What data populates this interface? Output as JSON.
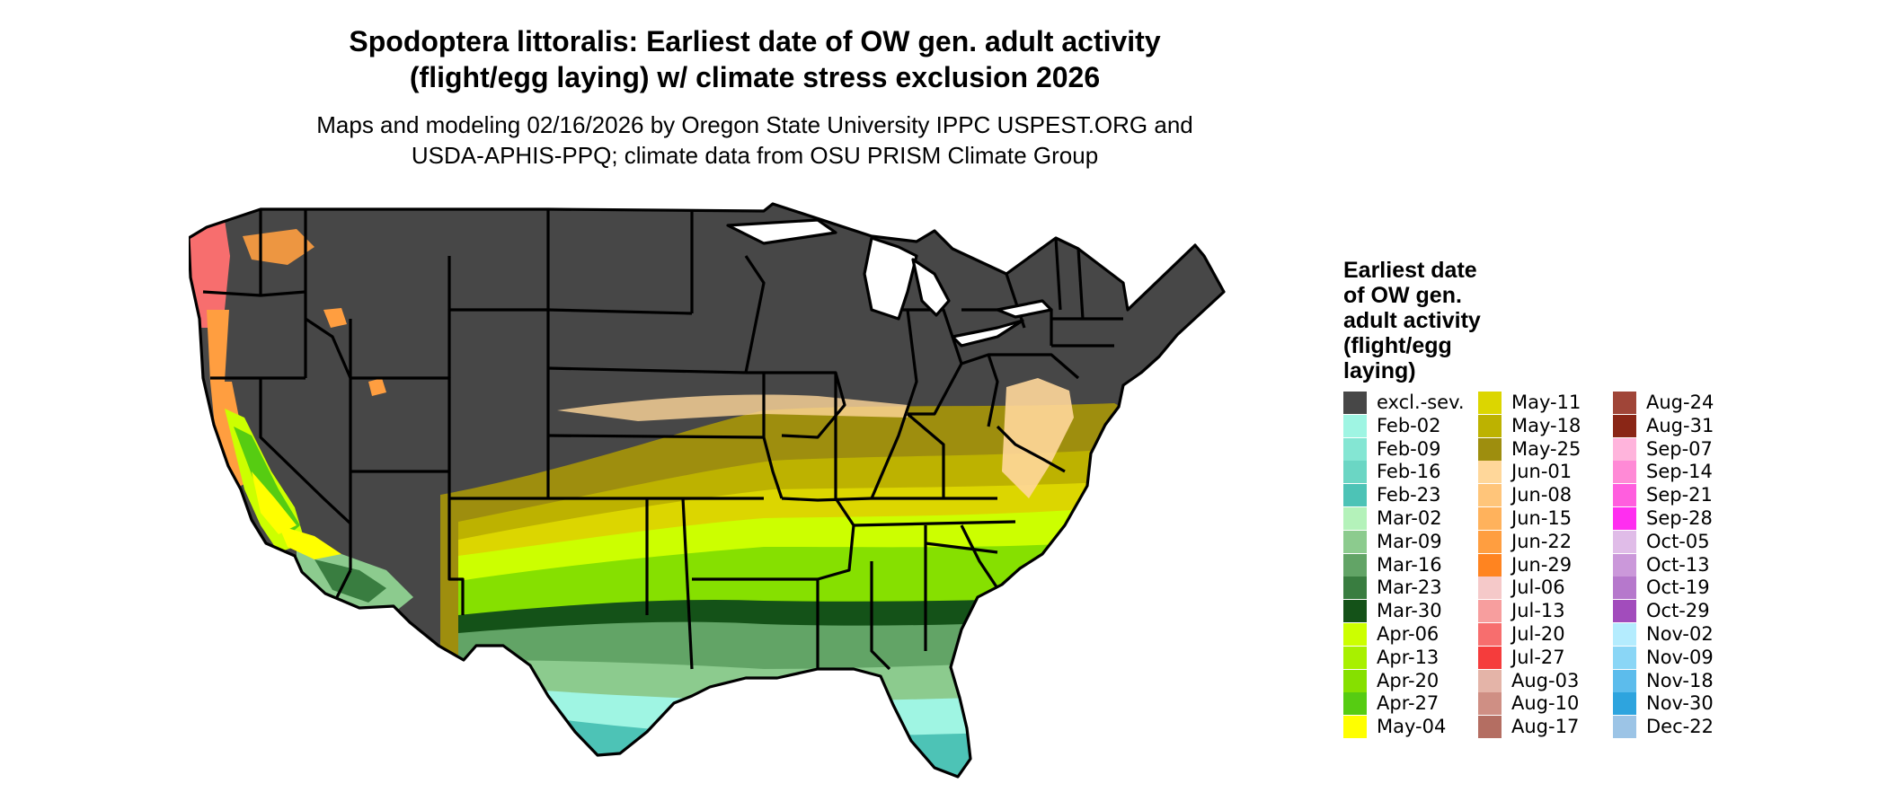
{
  "title": {
    "line1": "Spodoptera littoralis: Earliest date of OW gen. adult activity",
    "line2": "(flight/egg laying) w/ climate stress exclusion 2026"
  },
  "subtitle": {
    "line1": "Maps and modeling 02/16/2026 by Oregon State University IPPC USPEST.ORG and",
    "line2": "USDA-APHIS-PPQ; climate data from OSU PRISM Climate Group"
  },
  "legend": {
    "title_lines": [
      "Earliest date",
      "of OW gen.",
      "adult activity",
      "(flight/egg",
      "laying)"
    ],
    "columns": [
      [
        {
          "label": "excl.-sev.",
          "color": "#474747"
        },
        {
          "label": "Feb-02",
          "color": "#9ff5e3"
        },
        {
          "label": "Feb-09",
          "color": "#84e6d3"
        },
        {
          "label": "Feb-16",
          "color": "#6bd6c4"
        },
        {
          "label": "Feb-23",
          "color": "#4dc3b6"
        },
        {
          "label": "Mar-02",
          "color": "#b4f2ba"
        },
        {
          "label": "Mar-09",
          "color": "#8ccb8e"
        },
        {
          "label": "Mar-16",
          "color": "#62a466"
        },
        {
          "label": "Mar-23",
          "color": "#397d40"
        },
        {
          "label": "Mar-30",
          "color": "#145218"
        },
        {
          "label": "Apr-06",
          "color": "#ccff00"
        },
        {
          "label": "Apr-13",
          "color": "#a8f000"
        },
        {
          "label": "Apr-20",
          "color": "#86e000"
        },
        {
          "label": "Apr-27",
          "color": "#56cc12"
        },
        {
          "label": "May-04",
          "color": "#ffff00"
        }
      ],
      [
        {
          "label": "May-11",
          "color": "#dcd600"
        },
        {
          "label": "May-18",
          "color": "#bdb200"
        },
        {
          "label": "May-25",
          "color": "#9e8e0e"
        },
        {
          "label": "Jun-01",
          "color": "#ffd79a"
        },
        {
          "label": "Jun-08",
          "color": "#ffc57a"
        },
        {
          "label": "Jun-15",
          "color": "#ffb25c"
        },
        {
          "label": "Jun-22",
          "color": "#ff9e40"
        },
        {
          "label": "Jun-29",
          "color": "#ff8420"
        },
        {
          "label": "Jul-06",
          "color": "#f5c9c9"
        },
        {
          "label": "Jul-13",
          "color": "#f79e9e"
        },
        {
          "label": "Jul-20",
          "color": "#f76e6e"
        },
        {
          "label": "Jul-27",
          "color": "#f53c3c"
        },
        {
          "label": "Aug-03",
          "color": "#e4b4a8"
        },
        {
          "label": "Aug-10",
          "color": "#cf8f84"
        },
        {
          "label": "Aug-17",
          "color": "#b46e62"
        }
      ],
      [
        {
          "label": "Aug-24",
          "color": "#a04538"
        },
        {
          "label": "Aug-31",
          "color": "#8a2616"
        },
        {
          "label": "Sep-07",
          "color": "#ffb4dc"
        },
        {
          "label": "Sep-14",
          "color": "#ff8ad6"
        },
        {
          "label": "Sep-21",
          "color": "#ff5ede"
        },
        {
          "label": "Sep-28",
          "color": "#ff2ef0"
        },
        {
          "label": "Oct-05",
          "color": "#e0bce8"
        },
        {
          "label": "Oct-13",
          "color": "#cb98da"
        },
        {
          "label": "Oct-19",
          "color": "#b678cc"
        },
        {
          "label": "Oct-29",
          "color": "#a24cbc"
        },
        {
          "label": "Nov-02",
          "color": "#b4ecfe"
        },
        {
          "label": "Nov-09",
          "color": "#8ad6f6"
        },
        {
          "label": "Nov-18",
          "color": "#5cbcec"
        },
        {
          "label": "Nov-30",
          "color": "#2ea4de"
        },
        {
          "label": "Dec-22",
          "color": "#9cc4e6"
        }
      ]
    ]
  }
}
